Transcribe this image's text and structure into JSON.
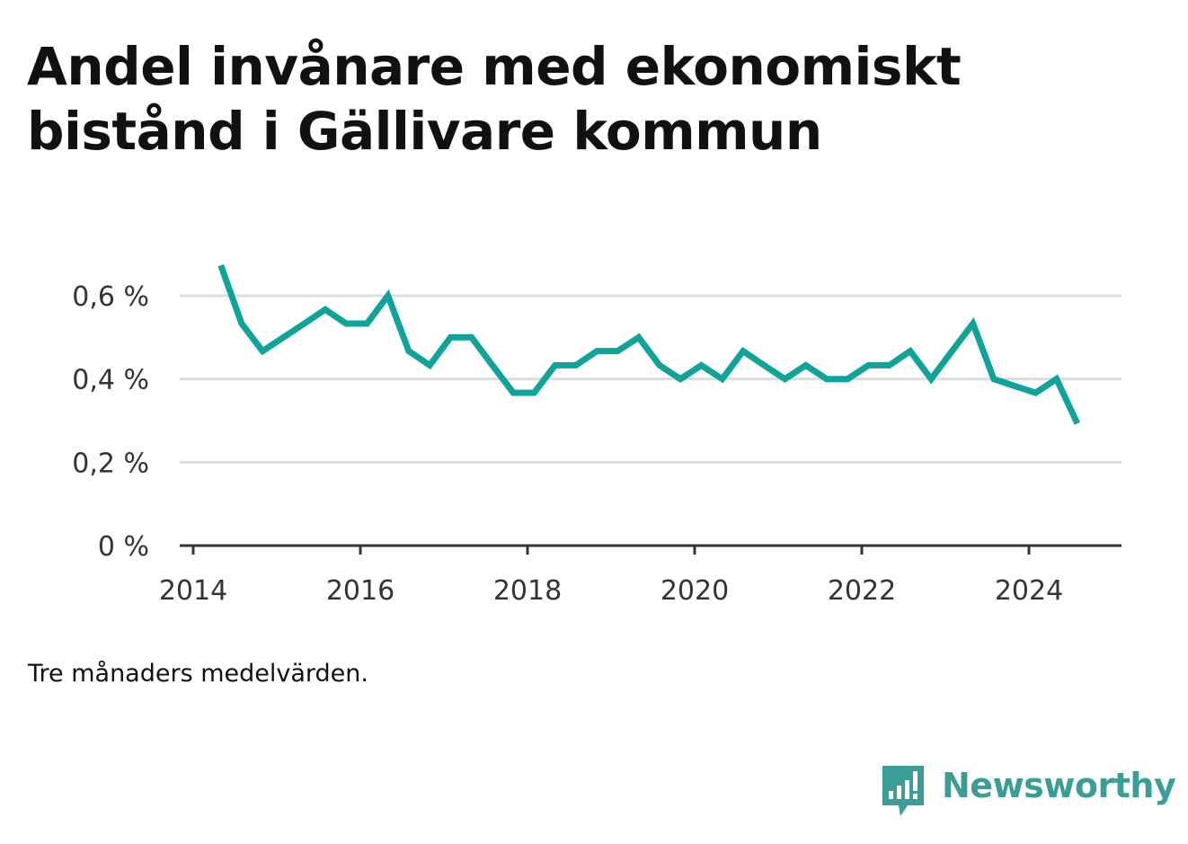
{
  "title": "Andel invånare med ekonomiskt bistånd i Gällivare kommun",
  "footnote": "Tre månaders medelvärden.",
  "brand": "Newsworthy",
  "colors": {
    "line": "#0fa39a",
    "grid": "#dddddd",
    "axis": "#333333",
    "brand": "#3a9e97"
  },
  "chart_data": {
    "type": "line",
    "title": "Andel invånare med ekonomiskt bistånd i Gällivare kommun",
    "xlabel": "",
    "ylabel": "",
    "xlim": [
      2014.0,
      2025.1
    ],
    "ylim": [
      0,
      0.7
    ],
    "x_ticks": [
      2014,
      2016,
      2018,
      2020,
      2022,
      2024
    ],
    "x_tick_labels": [
      "2014",
      "2016",
      "2018",
      "2020",
      "2022",
      "2024"
    ],
    "y_ticks": [
      0,
      0.2,
      0.4,
      0.6
    ],
    "y_tick_labels": [
      "0 %",
      "0,2 %",
      "0,4 %",
      "0,6 %"
    ],
    "grid": true,
    "series": [
      {
        "x": [
          2014.33,
          2014.58,
          2014.83,
          2015.08,
          2015.33,
          2015.58,
          2015.83,
          2016.08,
          2016.33,
          2016.58,
          2016.83,
          2017.08,
          2017.33,
          2017.58,
          2017.83,
          2018.08,
          2018.33,
          2018.58,
          2018.83,
          2019.08,
          2019.33,
          2019.58,
          2019.83,
          2020.08,
          2020.33,
          2020.58,
          2020.83,
          2021.08,
          2021.33,
          2021.58,
          2021.83,
          2022.08,
          2022.33,
          2022.58,
          2022.83,
          2023.08,
          2023.33,
          2023.58,
          2023.83,
          2024.08,
          2024.33,
          2024.58
        ],
        "y": [
          0.673,
          0.533,
          0.467,
          0.5,
          0.533,
          0.567,
          0.533,
          0.533,
          0.6,
          0.467,
          0.433,
          0.5,
          0.5,
          0.433,
          0.367,
          0.367,
          0.433,
          0.433,
          0.467,
          0.467,
          0.5,
          0.433,
          0.4,
          0.433,
          0.4,
          0.467,
          0.433,
          0.4,
          0.433,
          0.4,
          0.4,
          0.433,
          0.433,
          0.467,
          0.4,
          0.467,
          0.533,
          0.4,
          0.383,
          0.367,
          0.4,
          0.293
        ]
      }
    ]
  }
}
